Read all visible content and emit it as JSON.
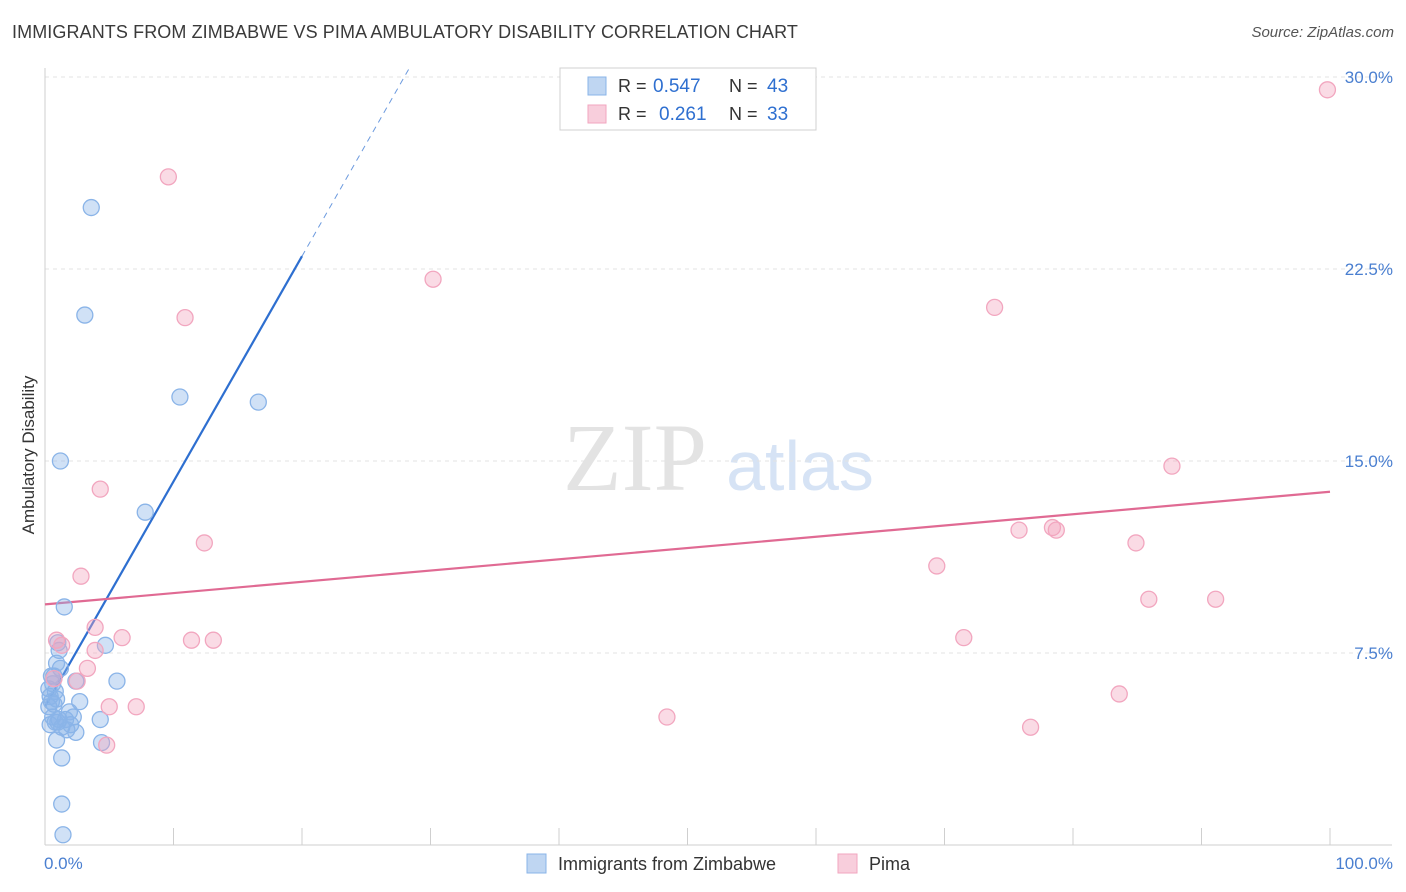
{
  "title": "IMMIGRANTS FROM ZIMBABWE VS PIMA AMBULATORY DISABILITY CORRELATION CHART",
  "source": "Source: ZipAtlas.com",
  "watermark": {
    "zip": "ZIP",
    "atlas": "atlas"
  },
  "chart_data": {
    "type": "scatter",
    "xlabel": "",
    "ylabel": "Ambulatory Disability",
    "xlim": [
      0,
      100
    ],
    "ylim": [
      0,
      30
    ],
    "x_tick_labels": [
      {
        "value": 0,
        "label": "0.0%"
      },
      {
        "value": 100,
        "label": "100.0%"
      }
    ],
    "y_tick_labels": [
      {
        "value": 7.5,
        "label": "7.5%"
      },
      {
        "value": 15,
        "label": "15.0%"
      },
      {
        "value": 22.5,
        "label": "22.5%"
      },
      {
        "value": 30,
        "label": "30.0%"
      }
    ],
    "legend_stats": [
      {
        "r_label": "R =",
        "r_value": "0.547",
        "n_label": "N =",
        "n_value": "43"
      },
      {
        "r_label": "R =",
        "r_value": "0.261",
        "n_label": "N =",
        "n_value": "33"
      }
    ],
    "series": [
      {
        "name": "Immigrants from Zimbabwe",
        "color": "#8ab4e8",
        "line_color": "#2e6fd0",
        "trend": {
          "x0": 0,
          "y0": 5.4,
          "x1": 20,
          "y1": 23.0,
          "dash_x1": 28.3,
          "dash_y1": 30.3
        },
        "points": [
          [
            3.6,
            24.9
          ],
          [
            3.1,
            20.7
          ],
          [
            10.5,
            17.5
          ],
          [
            16.6,
            17.3
          ],
          [
            1.2,
            15.0
          ],
          [
            7.8,
            13.0
          ],
          [
            1.5,
            9.3
          ],
          [
            1.0,
            7.9
          ],
          [
            1.1,
            7.6
          ],
          [
            4.7,
            7.8
          ],
          [
            0.9,
            7.1
          ],
          [
            0.7,
            6.6
          ],
          [
            0.6,
            6.3
          ],
          [
            0.8,
            6.0
          ],
          [
            2.4,
            6.4
          ],
          [
            5.6,
            6.4
          ],
          [
            0.4,
            5.8
          ],
          [
            0.5,
            5.6
          ],
          [
            0.3,
            5.4
          ],
          [
            2.7,
            5.6
          ],
          [
            1.9,
            5.2
          ],
          [
            0.6,
            5.0
          ],
          [
            1.1,
            4.9
          ],
          [
            1.6,
            4.9
          ],
          [
            4.3,
            4.9
          ],
          [
            0.4,
            4.7
          ],
          [
            0.8,
            4.8
          ],
          [
            1.3,
            4.6
          ],
          [
            2.0,
            4.7
          ],
          [
            1.7,
            4.5
          ],
          [
            2.4,
            4.4
          ],
          [
            0.9,
            4.1
          ],
          [
            4.4,
            4.0
          ],
          [
            1.3,
            3.4
          ],
          [
            1.3,
            1.6
          ],
          [
            1.4,
            0.4
          ],
          [
            0.5,
            6.6
          ],
          [
            0.9,
            5.7
          ],
          [
            1.2,
            6.9
          ],
          [
            0.7,
            5.5
          ],
          [
            0.3,
            6.1
          ],
          [
            2.2,
            5.0
          ],
          [
            1.0,
            4.8
          ]
        ]
      },
      {
        "name": "Pima",
        "color": "#f2a6bf",
        "line_color": "#e06a93",
        "trend": {
          "x0": 0,
          "y0": 9.4,
          "x1": 100,
          "y1": 13.8
        },
        "points": [
          [
            9.6,
            26.1
          ],
          [
            10.9,
            20.6
          ],
          [
            30.2,
            22.1
          ],
          [
            73.9,
            21.0
          ],
          [
            99.8,
            29.5
          ],
          [
            87.7,
            14.8
          ],
          [
            4.3,
            13.9
          ],
          [
            12.4,
            11.8
          ],
          [
            75.8,
            12.3
          ],
          [
            78.4,
            12.4
          ],
          [
            78.7,
            12.3
          ],
          [
            84.9,
            11.8
          ],
          [
            69.4,
            10.9
          ],
          [
            2.8,
            10.5
          ],
          [
            85.9,
            9.6
          ],
          [
            91.1,
            9.6
          ],
          [
            3.9,
            8.5
          ],
          [
            6.0,
            8.1
          ],
          [
            11.4,
            8.0
          ],
          [
            13.1,
            8.0
          ],
          [
            71.5,
            8.1
          ],
          [
            0.9,
            8.0
          ],
          [
            1.3,
            7.8
          ],
          [
            3.9,
            7.6
          ],
          [
            3.3,
            6.9
          ],
          [
            2.5,
            6.4
          ],
          [
            0.7,
            6.5
          ],
          [
            5.0,
            5.4
          ],
          [
            7.1,
            5.4
          ],
          [
            4.8,
            3.9
          ],
          [
            48.4,
            5.0
          ],
          [
            76.7,
            4.6
          ],
          [
            83.6,
            5.9
          ]
        ]
      }
    ]
  }
}
